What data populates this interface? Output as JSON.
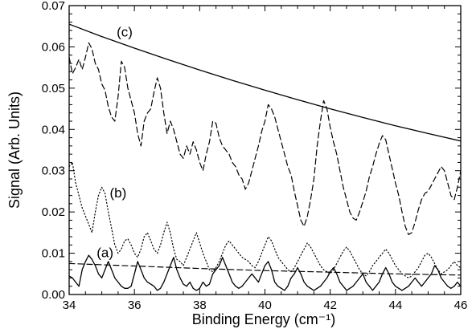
{
  "chart_data": {
    "type": "line",
    "xlabel": "Binding Energy (cm⁻¹)",
    "ylabel": "Signal (Arb. Units)",
    "xlim": [
      34,
      46
    ],
    "ylim": [
      0.0,
      0.07
    ],
    "x_ticks": [
      34,
      36,
      38,
      40,
      42,
      44,
      46
    ],
    "y_ticks": [
      0.0,
      0.01,
      0.02,
      0.03,
      0.04,
      0.05,
      0.06,
      0.07
    ],
    "x_tick_labels": [
      "34",
      "36",
      "38",
      "40",
      "42",
      "44",
      "46"
    ],
    "y_tick_labels": [
      "0.00",
      "0.01",
      "0.02",
      "0.03",
      "0.04",
      "0.05",
      "0.06",
      "0.07"
    ],
    "grid": false,
    "annotations": [
      {
        "text": "(c)",
        "x": 35.7,
        "y": 0.0625
      },
      {
        "text": "(b)",
        "x": 35.5,
        "y": 0.0235
      },
      {
        "text": "(a)",
        "x": 35.1,
        "y": 0.009
      }
    ],
    "series": [
      {
        "id": "c-fit",
        "style": "solid",
        "x": [
          34,
          35,
          36,
          37,
          38,
          39,
          40,
          41,
          42,
          43,
          44,
          45,
          46
        ],
        "y": [
          0.0655,
          0.0625,
          0.0597,
          0.057,
          0.0544,
          0.0519,
          0.0495,
          0.0472,
          0.045,
          0.0429,
          0.0409,
          0.039,
          0.0372
        ]
      },
      {
        "id": "c-data",
        "style": "dashed",
        "x": [
          34.0,
          34.1,
          34.2,
          34.3,
          34.4,
          34.5,
          34.6,
          34.7,
          34.8,
          34.9,
          35.0,
          35.1,
          35.2,
          35.3,
          35.4,
          35.5,
          35.6,
          35.7,
          35.8,
          35.9,
          36.0,
          36.1,
          36.2,
          36.3,
          36.4,
          36.5,
          36.6,
          36.7,
          36.8,
          36.9,
          37.0,
          37.1,
          37.2,
          37.3,
          37.4,
          37.5,
          37.6,
          37.7,
          37.8,
          37.9,
          38.0,
          38.1,
          38.2,
          38.3,
          38.4,
          38.5,
          38.6,
          38.7,
          38.8,
          38.9,
          39.0,
          39.1,
          39.2,
          39.3,
          39.4,
          39.5,
          39.6,
          39.7,
          39.8,
          39.9,
          40.0,
          40.1,
          40.2,
          40.3,
          40.4,
          40.5,
          40.6,
          40.7,
          40.8,
          40.9,
          41.0,
          41.1,
          41.2,
          41.3,
          41.4,
          41.5,
          41.6,
          41.7,
          41.8,
          41.9,
          42.0,
          42.1,
          42.2,
          42.3,
          42.4,
          42.5,
          42.6,
          42.7,
          42.8,
          42.9,
          43.0,
          43.1,
          43.2,
          43.3,
          43.4,
          43.5,
          43.6,
          43.7,
          43.8,
          43.9,
          44.0,
          44.1,
          44.2,
          44.3,
          44.4,
          44.5,
          44.6,
          44.7,
          44.8,
          44.9,
          45.0,
          45.1,
          45.2,
          45.3,
          45.4,
          45.5,
          45.6,
          45.7,
          45.8,
          45.9,
          46.0
        ],
        "y": [
          0.0575,
          0.0535,
          0.055,
          0.057,
          0.0545,
          0.0575,
          0.061,
          0.0595,
          0.056,
          0.0545,
          0.051,
          0.0495,
          0.0455,
          0.043,
          0.042,
          0.048,
          0.0565,
          0.055,
          0.05,
          0.047,
          0.044,
          0.039,
          0.036,
          0.042,
          0.044,
          0.045,
          0.049,
          0.0525,
          0.05,
          0.044,
          0.039,
          0.042,
          0.04,
          0.037,
          0.034,
          0.033,
          0.036,
          0.034,
          0.037,
          0.035,
          0.032,
          0.03,
          0.034,
          0.037,
          0.042,
          0.0415,
          0.038,
          0.036,
          0.035,
          0.034,
          0.032,
          0.031,
          0.029,
          0.028,
          0.0255,
          0.027,
          0.03,
          0.033,
          0.036,
          0.0395,
          0.042,
          0.046,
          0.045,
          0.043,
          0.04,
          0.037,
          0.034,
          0.031,
          0.029,
          0.025,
          0.0215,
          0.018,
          0.0165,
          0.019,
          0.023,
          0.028,
          0.036,
          0.042,
          0.047,
          0.045,
          0.0405,
          0.037,
          0.034,
          0.03,
          0.026,
          0.023,
          0.02,
          0.0185,
          0.018,
          0.02,
          0.0225,
          0.025,
          0.0285,
          0.031,
          0.034,
          0.0365,
          0.0385,
          0.0375,
          0.034,
          0.0305,
          0.027,
          0.024,
          0.02,
          0.0165,
          0.0145,
          0.015,
          0.0175,
          0.0205,
          0.023,
          0.0245,
          0.025,
          0.0265,
          0.028,
          0.0295,
          0.031,
          0.03,
          0.027,
          0.024,
          0.023,
          0.026,
          0.03
        ]
      },
      {
        "id": "b-data",
        "style": "dotted",
        "x": [
          34.0,
          34.1,
          34.2,
          34.3,
          34.4,
          34.5,
          34.6,
          34.7,
          34.8,
          34.9,
          35.0,
          35.1,
          35.2,
          35.3,
          35.4,
          35.5,
          35.6,
          35.7,
          35.8,
          35.9,
          36.0,
          36.1,
          36.2,
          36.3,
          36.4,
          36.5,
          36.6,
          36.7,
          36.8,
          36.9,
          37.0,
          37.1,
          37.2,
          37.3,
          37.4,
          37.5,
          37.6,
          37.7,
          37.8,
          37.9,
          38.0,
          38.1,
          38.2,
          38.3,
          38.4,
          38.5,
          38.6,
          38.7,
          38.8,
          38.9,
          39.0,
          39.1,
          39.2,
          39.3,
          39.4,
          39.5,
          39.6,
          39.7,
          39.8,
          39.9,
          40.0,
          40.1,
          40.2,
          40.3,
          40.4,
          40.5,
          40.6,
          40.7,
          40.8,
          40.9,
          41.0,
          41.1,
          41.2,
          41.3,
          41.4,
          41.5,
          41.6,
          41.7,
          41.8,
          41.9,
          42.0,
          42.1,
          42.2,
          42.3,
          42.4,
          42.5,
          42.6,
          42.7,
          42.8,
          42.9,
          43.0,
          43.1,
          43.2,
          43.3,
          43.4,
          43.5,
          43.6,
          43.7,
          43.8,
          43.9,
          44.0,
          44.1,
          44.2,
          44.3,
          44.4,
          44.5,
          44.6,
          44.7,
          44.8,
          44.9,
          45.0,
          45.1,
          45.2,
          45.3,
          45.4,
          45.5,
          45.6,
          45.7,
          45.8,
          45.9,
          46.0
        ],
        "y": [
          0.031,
          0.032,
          0.027,
          0.024,
          0.021,
          0.019,
          0.017,
          0.015,
          0.02,
          0.024,
          0.026,
          0.0245,
          0.02,
          0.016,
          0.012,
          0.01,
          0.011,
          0.013,
          0.0135,
          0.012,
          0.01,
          0.009,
          0.011,
          0.014,
          0.015,
          0.013,
          0.011,
          0.01,
          0.012,
          0.015,
          0.0175,
          0.015,
          0.011,
          0.0085,
          0.008,
          0.007,
          0.009,
          0.011,
          0.013,
          0.015,
          0.0125,
          0.01,
          0.008,
          0.006,
          0.0055,
          0.0065,
          0.008,
          0.01,
          0.012,
          0.013,
          0.012,
          0.011,
          0.01,
          0.009,
          0.0085,
          0.008,
          0.007,
          0.0065,
          0.008,
          0.01,
          0.012,
          0.014,
          0.013,
          0.011,
          0.009,
          0.008,
          0.007,
          0.006,
          0.0055,
          0.0065,
          0.008,
          0.0095,
          0.011,
          0.0125,
          0.0115,
          0.01,
          0.0085,
          0.007,
          0.006,
          0.0055,
          0.005,
          0.006,
          0.0075,
          0.009,
          0.0105,
          0.0115,
          0.0105,
          0.009,
          0.0075,
          0.006,
          0.005,
          0.0045,
          0.0055,
          0.007,
          0.008,
          0.009,
          0.01,
          0.011,
          0.01,
          0.0085,
          0.007,
          0.006,
          0.005,
          0.0045,
          0.004,
          0.0045,
          0.0055,
          0.0065,
          0.008,
          0.0095,
          0.01,
          0.009,
          0.0075,
          0.006,
          0.005,
          0.0055,
          0.006,
          0.007,
          0.008,
          0.007,
          0.0065
        ]
      },
      {
        "id": "a-fit",
        "style": "dashed",
        "x": [
          34,
          36,
          38,
          40,
          42,
          44,
          46
        ],
        "y": [
          0.0075,
          0.0069,
          0.0063,
          0.0058,
          0.0054,
          0.005,
          0.0047
        ]
      },
      {
        "id": "a-data",
        "style": "solid",
        "x": [
          34.0,
          34.1,
          34.2,
          34.3,
          34.4,
          34.5,
          34.6,
          34.7,
          34.8,
          34.9,
          35.0,
          35.1,
          35.2,
          35.3,
          35.4,
          35.5,
          35.6,
          35.7,
          35.8,
          35.9,
          36.0,
          36.1,
          36.2,
          36.3,
          36.4,
          36.5,
          36.6,
          36.7,
          36.8,
          36.9,
          37.0,
          37.1,
          37.2,
          37.3,
          37.4,
          37.5,
          37.6,
          37.7,
          37.8,
          37.9,
          38.0,
          38.1,
          38.2,
          38.3,
          38.4,
          38.5,
          38.6,
          38.7,
          38.8,
          38.9,
          39.0,
          39.1,
          39.2,
          39.3,
          39.4,
          39.5,
          39.6,
          39.7,
          39.8,
          39.9,
          40.0,
          40.1,
          40.2,
          40.3,
          40.4,
          40.5,
          40.6,
          40.7,
          40.8,
          40.9,
          41.0,
          41.1,
          41.2,
          41.3,
          41.4,
          41.5,
          41.6,
          41.7,
          41.8,
          41.9,
          42.0,
          42.1,
          42.2,
          42.3,
          42.4,
          42.5,
          42.6,
          42.7,
          42.8,
          42.9,
          43.0,
          43.1,
          43.2,
          43.3,
          43.4,
          43.5,
          43.6,
          43.7,
          43.8,
          43.9,
          44.0,
          44.1,
          44.2,
          44.3,
          44.4,
          44.5,
          44.6,
          44.7,
          44.8,
          44.9,
          45.0,
          45.1,
          45.2,
          45.3,
          45.4,
          45.5,
          45.6,
          45.7,
          45.8,
          45.9,
          46.0
        ],
        "y": [
          0.0045,
          0.004,
          0.003,
          0.002,
          0.006,
          0.008,
          0.0095,
          0.0085,
          0.007,
          0.005,
          0.004,
          0.006,
          0.008,
          0.006,
          0.004,
          0.003,
          0.002,
          0.0015,
          0.0015,
          0.002,
          0.005,
          0.008,
          0.006,
          0.004,
          0.003,
          0.0025,
          0.002,
          0.001,
          0.0015,
          0.003,
          0.005,
          0.007,
          0.009,
          0.006,
          0.004,
          0.0025,
          0.002,
          0.003,
          0.0015,
          0.001,
          0.0015,
          0.003,
          0.002,
          0.0025,
          0.005,
          0.006,
          0.007,
          0.009,
          0.007,
          0.005,
          0.003,
          0.002,
          0.0015,
          0.002,
          0.003,
          0.004,
          0.005,
          0.004,
          0.003,
          0.005,
          0.007,
          0.008,
          0.006,
          0.003,
          0.002,
          0.0015,
          0.001,
          0.002,
          0.004,
          0.005,
          0.0065,
          0.005,
          0.003,
          0.002,
          0.0015,
          0.001,
          0.0015,
          0.002,
          0.003,
          0.004,
          0.0055,
          0.0065,
          0.005,
          0.003,
          0.002,
          0.001,
          0.0015,
          0.002,
          0.003,
          0.004,
          0.005,
          0.003,
          0.002,
          0.001,
          0.002,
          0.003,
          0.005,
          0.0065,
          0.005,
          0.003,
          0.002,
          0.0015,
          0.001,
          0.0015,
          0.002,
          0.003,
          0.004,
          0.003,
          0.002,
          0.003,
          0.004,
          0.005,
          0.007,
          0.006,
          0.004,
          0.003,
          0.002,
          0.0015,
          0.002,
          0.003,
          0.002
        ]
      }
    ]
  }
}
